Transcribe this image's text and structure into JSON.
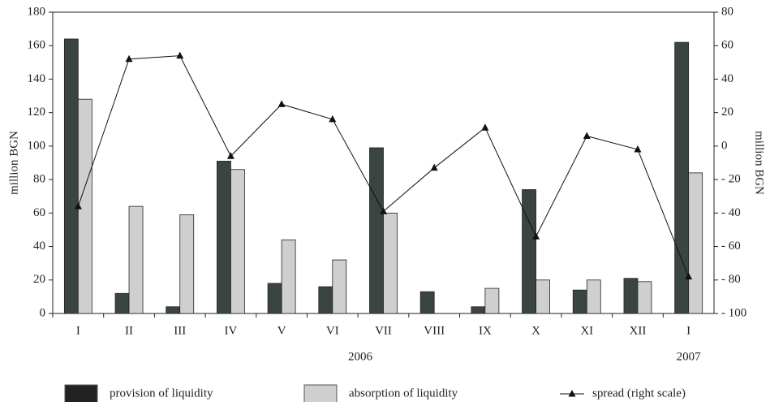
{
  "chart_data": {
    "type": "bar_line",
    "categories": [
      "I",
      "II",
      "III",
      "IV",
      "V",
      "VI",
      "VII",
      "VIII",
      "IX",
      "X",
      "XI",
      "XII",
      "I"
    ],
    "annotations": [
      "2006",
      "2007"
    ],
    "ylabel": "million BGN",
    "y2label": "million BGN",
    "ylim": [
      0,
      180
    ],
    "yticks": [
      0,
      20,
      40,
      60,
      80,
      100,
      120,
      140,
      160,
      180
    ],
    "y2lim": [
      -100,
      80
    ],
    "y2ticks": [
      {
        "value": -100,
        "label": "- 100"
      },
      {
        "value": -80,
        "label": "- 80"
      },
      {
        "value": -60,
        "label": "- 60"
      },
      {
        "value": -40,
        "label": "- 40"
      },
      {
        "value": -20,
        "label": "- 20"
      },
      0,
      20,
      40,
      60,
      80
    ],
    "series": [
      {
        "name": "provision of liquidity",
        "color": "#3a4543",
        "kind": "bar",
        "values": [
          164,
          12,
          4,
          91,
          18,
          16,
          99,
          13,
          4,
          74,
          14,
          21,
          162
        ]
      },
      {
        "name": "absorption of liquidity",
        "color": "#cfcfcf",
        "kind": "bar",
        "values": [
          128,
          64,
          59,
          86,
          44,
          32,
          60,
          0,
          15,
          20,
          20,
          19,
          84
        ]
      },
      {
        "name": "spread (right scale)",
        "color": "#111111",
        "kind": "line",
        "axis": "y2",
        "values": [
          -36,
          52,
          54,
          -6,
          25,
          16,
          -39,
          -13,
          11,
          -54,
          6,
          -2,
          -78
        ]
      }
    ]
  }
}
